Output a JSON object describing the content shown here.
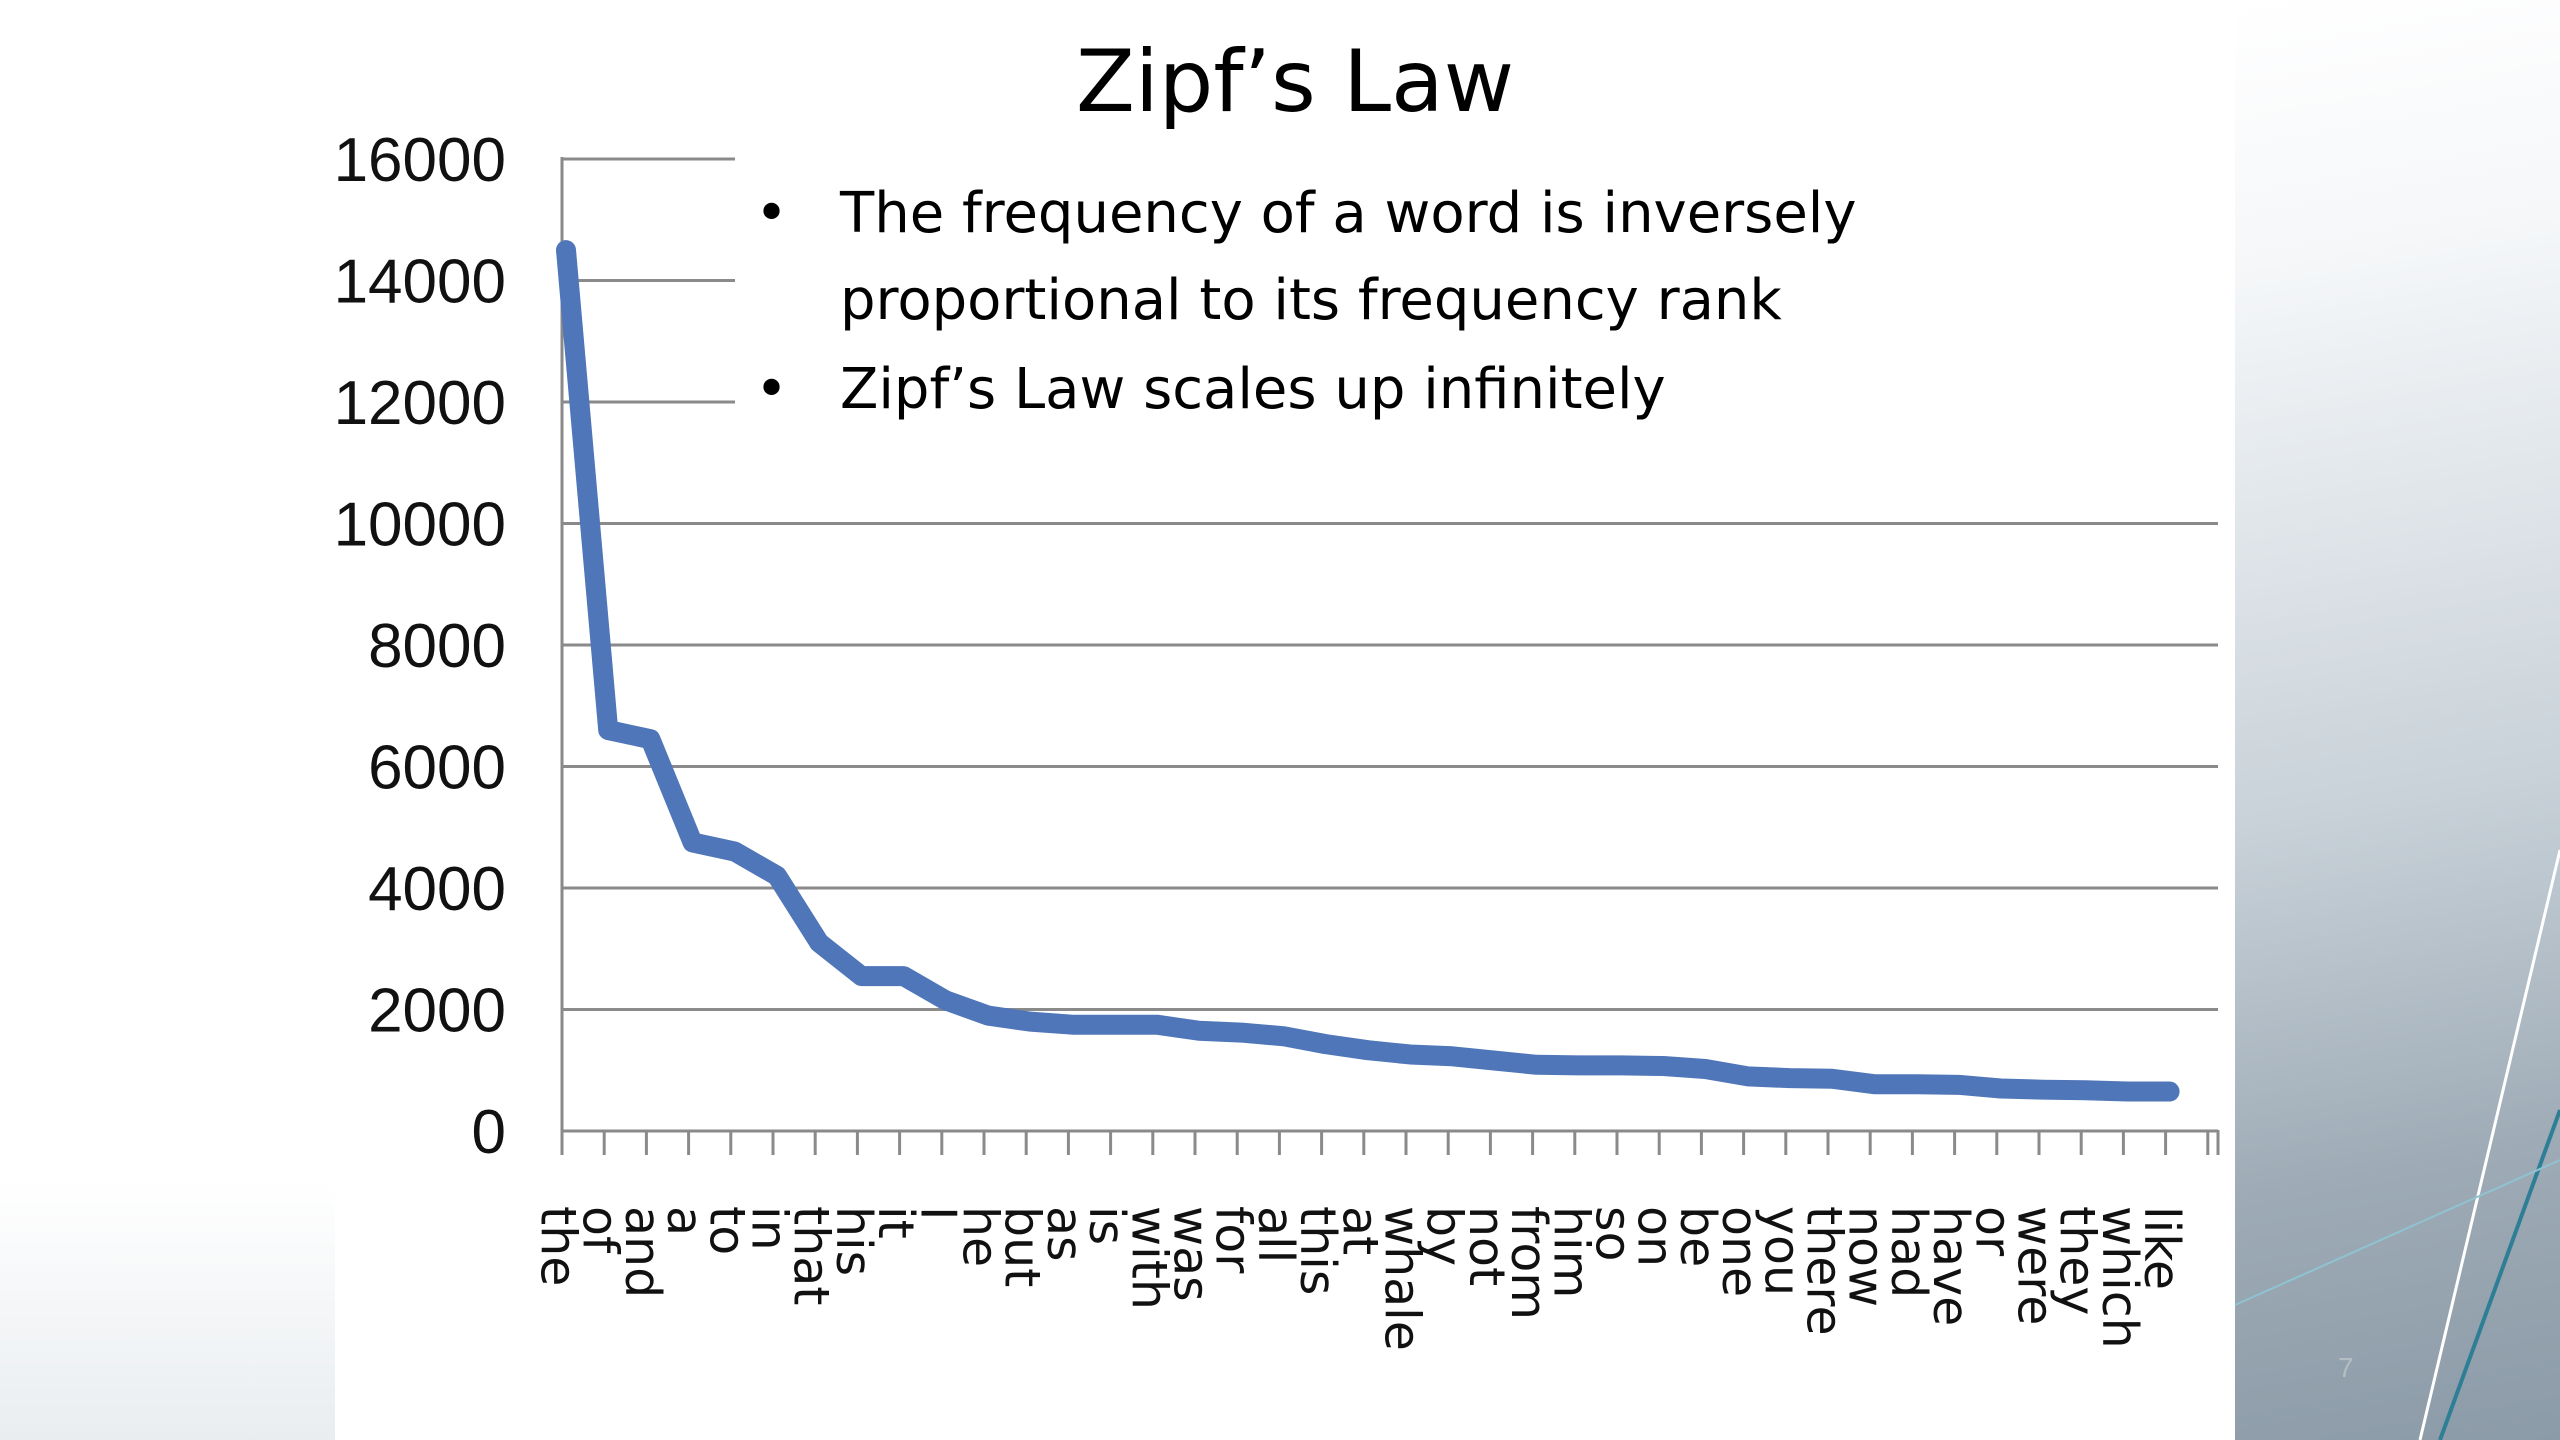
{
  "slide": {
    "title": "Zipf’s Law",
    "page_number": "7",
    "bullets": [
      "The frequency of a word is inversely proportional to its frequency rank",
      "Zipf’s Law scales up infinitely"
    ],
    "bullet_symbol": "•"
  },
  "chart_data": {
    "type": "line",
    "title": "",
    "xlabel": "",
    "ylabel": "",
    "ylim": [
      0,
      16000
    ],
    "yticks": [
      "0",
      "2000",
      "4000",
      "6000",
      "8000",
      "10000",
      "12000",
      "14000",
      "16000"
    ],
    "grid": true,
    "line_color": "#4f76b8",
    "categories": [
      "the",
      "of",
      "and",
      "a",
      "to",
      "in",
      "that",
      "his",
      "it",
      "I",
      "he",
      "but",
      "as",
      "is",
      "with",
      "was",
      "for",
      "all",
      "this",
      "at",
      "whale",
      "by",
      "not",
      "from",
      "him",
      "so",
      "on",
      "be",
      "one",
      "you",
      "there",
      "now",
      "had",
      "have",
      "or",
      "were",
      "they",
      "which",
      "like"
    ],
    "series": [
      {
        "values": [
          14500,
          6600,
          6450,
          4750,
          4600,
          4200,
          3100,
          2550,
          2550,
          2150,
          1900,
          1800,
          1750,
          1750,
          1750,
          1650,
          1620,
          1560,
          1430,
          1330,
          1260,
          1230,
          1160,
          1090,
          1080,
          1080,
          1070,
          1020,
          900,
          870,
          860,
          770,
          770,
          760,
          700,
          680,
          670,
          650,
          650
        ]
      }
    ]
  }
}
